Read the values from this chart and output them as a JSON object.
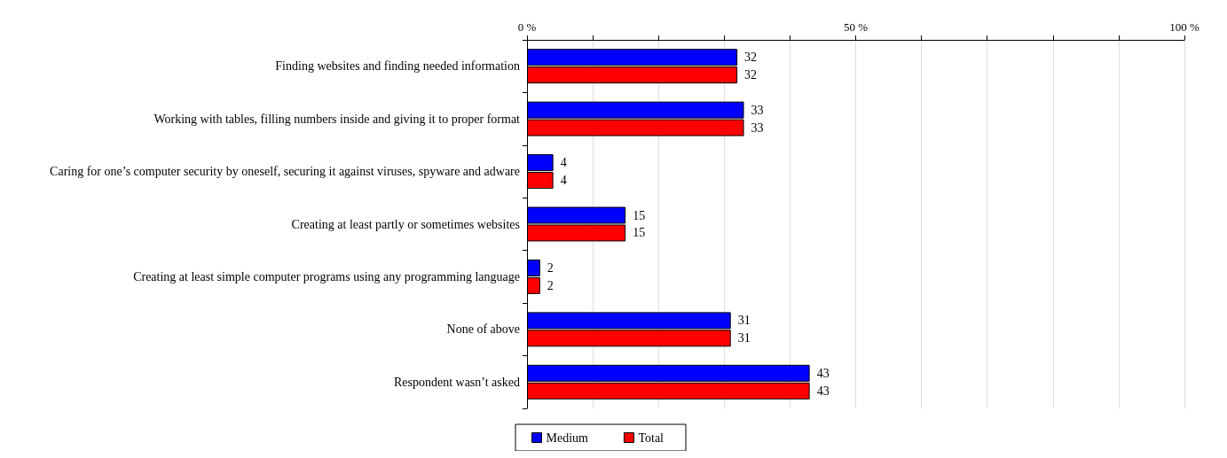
{
  "chart_data": {
    "type": "bar",
    "orientation": "horizontal",
    "categories": [
      "Finding websites and finding needed information",
      "Working with tables, filling numbers inside and giving it to proper format",
      "Caring for one’s computer security by oneself, securing it against viruses, spyware and adware",
      "Creating at least partly or sometimes websites",
      "Creating at least simple computer programs using any programming language",
      "None of above",
      "Respondent wasn’t asked"
    ],
    "series": [
      {
        "name": "Medium",
        "color": "#0000ff",
        "values": [
          32,
          33,
          4,
          15,
          2,
          31,
          43
        ]
      },
      {
        "name": "Total",
        "color": "#ff0000",
        "values": [
          32,
          33,
          4,
          15,
          2,
          31,
          43
        ]
      }
    ],
    "xlim": [
      0,
      100
    ],
    "xticks": [
      {
        "value": 0,
        "label": "0 %"
      },
      {
        "value": 10,
        "label": null
      },
      {
        "value": 20,
        "label": null
      },
      {
        "value": 30,
        "label": null
      },
      {
        "value": 40,
        "label": null
      },
      {
        "value": 50,
        "label": "50 %"
      },
      {
        "value": 60,
        "label": null
      },
      {
        "value": 70,
        "label": null
      },
      {
        "value": 80,
        "label": null
      },
      {
        "value": 90,
        "label": null
      },
      {
        "value": 100,
        "label": "100 %"
      }
    ],
    "grid": "x",
    "data_labels": true,
    "legend": "bottom"
  }
}
